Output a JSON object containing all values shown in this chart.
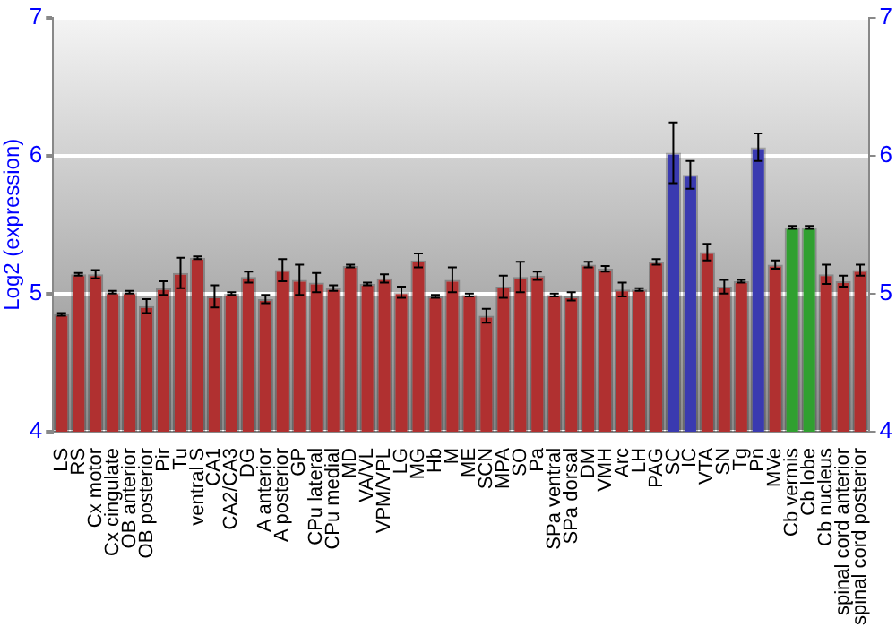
{
  "chart_data": {
    "type": "bar",
    "ylabel": "Log2 (expression)",
    "categories": [
      "LS",
      "RS",
      "Cx motor",
      "Cx cingulate",
      "OB anterior",
      "OB posterior",
      "Pir",
      "Tu",
      "ventral S",
      "CA1",
      "CA2/CA3",
      "DG",
      "A anterior",
      "A posterior",
      "GP",
      "CPu lateral",
      "CPu medial",
      "MD",
      "VA/VL",
      "VPM/VPL",
      "LG",
      "MG",
      "Hb",
      "M",
      "ME",
      "SCN",
      "MPA",
      "SO",
      "Pa",
      "SPa ventral",
      "SPa dorsal",
      "DM",
      "VMH",
      "Arc",
      "LH",
      "PAG",
      "SC",
      "IC",
      "VTA",
      "SN",
      "Tg",
      "Pn",
      "MVe",
      "Cb vermis",
      "Cb lobe",
      "Cb nucleus",
      "spinal cord anterior",
      "spinal cord posterior"
    ],
    "values": [
      4.85,
      5.14,
      5.14,
      5.01,
      5.01,
      4.91,
      5.04,
      5.15,
      5.26,
      4.98,
      5.0,
      5.12,
      4.96,
      5.17,
      5.1,
      5.08,
      5.04,
      5.2,
      5.07,
      5.11,
      5.01,
      5.24,
      4.98,
      5.1,
      4.99,
      4.84,
      5.05,
      5.12,
      5.13,
      4.99,
      4.98,
      5.21,
      5.18,
      5.03,
      5.03,
      5.23,
      6.02,
      5.86,
      5.3,
      5.05,
      5.09,
      6.06,
      5.21,
      5.48,
      5.48,
      5.14,
      5.09,
      5.17
    ],
    "errors": [
      0.01,
      0.01,
      0.03,
      0.01,
      0.01,
      0.05,
      0.05,
      0.11,
      0.01,
      0.08,
      0.01,
      0.04,
      0.03,
      0.08,
      0.11,
      0.07,
      0.02,
      0.01,
      0.01,
      0.03,
      0.04,
      0.05,
      0.01,
      0.09,
      0.01,
      0.05,
      0.08,
      0.11,
      0.03,
      0.01,
      0.03,
      0.02,
      0.02,
      0.05,
      0.01,
      0.02,
      0.22,
      0.1,
      0.06,
      0.05,
      0.01,
      0.1,
      0.03,
      0.01,
      0.01,
      0.07,
      0.04,
      0.04
    ],
    "colors": [
      "#b03030",
      "#b03030",
      "#b03030",
      "#b03030",
      "#b03030",
      "#b03030",
      "#b03030",
      "#b03030",
      "#b03030",
      "#b03030",
      "#b03030",
      "#b03030",
      "#b03030",
      "#b03030",
      "#b03030",
      "#b03030",
      "#b03030",
      "#b03030",
      "#b03030",
      "#b03030",
      "#b03030",
      "#b03030",
      "#b03030",
      "#b03030",
      "#b03030",
      "#b03030",
      "#b03030",
      "#b03030",
      "#b03030",
      "#b03030",
      "#b03030",
      "#b03030",
      "#b03030",
      "#b03030",
      "#b03030",
      "#b03030",
      "#3a3ab0",
      "#3a3ab0",
      "#b03030",
      "#b03030",
      "#b03030",
      "#3a3ab0",
      "#b03030",
      "#30a030",
      "#30a030",
      "#b03030",
      "#b03030",
      "#b03030"
    ],
    "ylim": [
      4,
      7
    ],
    "yticks": [
      4,
      5,
      6,
      7
    ],
    "y2lim": [
      4,
      7
    ],
    "y2ticks": [
      4,
      5,
      6,
      7
    ],
    "grid": "y",
    "legend": false
  }
}
